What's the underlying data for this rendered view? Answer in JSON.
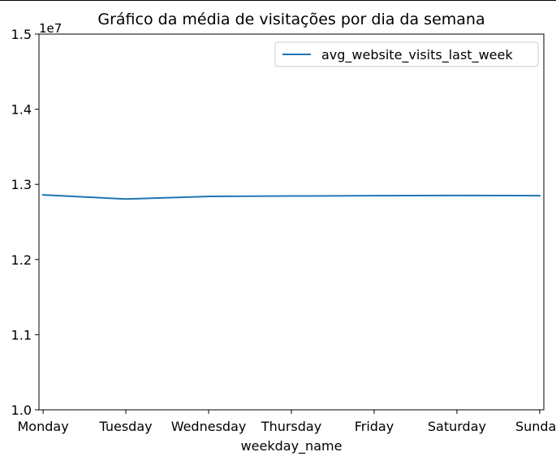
{
  "chart_data": {
    "type": "line",
    "title": "Gráfico da média de visitações por dia da semana",
    "xlabel": "weekday_name",
    "ylabel": "",
    "categories": [
      "Monday",
      "Tuesday",
      "Wednesday",
      "Thursday",
      "Friday",
      "Saturday",
      "Sunday"
    ],
    "series": [
      {
        "name": "avg_website_visits_last_week",
        "color": "#1f77b4",
        "values": [
          12860000,
          12805000,
          12840000,
          12845000,
          12850000,
          12852000,
          12850000
        ]
      }
    ],
    "ylim": [
      10000000,
      15000000
    ],
    "yticks": [
      10000000,
      11000000,
      12000000,
      13000000,
      14000000,
      15000000
    ],
    "ytick_labels": [
      "1.0",
      "1.1",
      "1.2",
      "1.3",
      "1.4",
      "1.5"
    ],
    "y_offset_label": "1e7",
    "legend_position": "upper-right",
    "grid": false
  }
}
